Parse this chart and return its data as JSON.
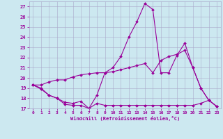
{
  "xlabel": "Windchill (Refroidissement éolien,°C)",
  "background_color": "#cce8f0",
  "line_color": "#990099",
  "grid_color": "#aaaacc",
  "xlim": [
    -0.5,
    23.5
  ],
  "ylim": [
    17,
    27.5
  ],
  "yticks": [
    17,
    18,
    19,
    20,
    21,
    22,
    23,
    24,
    25,
    26,
    27
  ],
  "xticks": [
    0,
    1,
    2,
    3,
    4,
    5,
    6,
    7,
    8,
    9,
    10,
    11,
    12,
    13,
    14,
    15,
    16,
    17,
    18,
    19,
    20,
    21,
    22,
    23
  ],
  "series": [
    [
      19.3,
      18.9,
      18.3,
      18.0,
      17.4,
      17.3,
      17.3,
      17.0,
      17.5,
      17.3,
      17.3,
      17.3,
      17.3,
      17.3,
      17.3,
      17.3,
      17.3,
      17.3,
      17.3,
      17.3,
      17.3,
      17.5,
      17.8,
      17.2
    ],
    [
      19.3,
      19.0,
      18.3,
      18.0,
      17.6,
      17.5,
      17.7,
      17.0,
      18.3,
      20.5,
      21.0,
      22.1,
      24.0,
      25.5,
      27.3,
      26.7,
      20.5,
      20.5,
      22.2,
      23.4,
      21.0,
      19.0,
      17.8,
      17.2
    ],
    [
      19.3,
      19.3,
      19.6,
      19.8,
      19.8,
      20.1,
      20.3,
      20.4,
      20.5,
      20.5,
      20.6,
      20.8,
      21.0,
      21.2,
      21.4,
      20.5,
      21.7,
      22.1,
      22.3,
      22.7,
      21.0,
      19.0,
      17.8,
      17.2
    ]
  ]
}
